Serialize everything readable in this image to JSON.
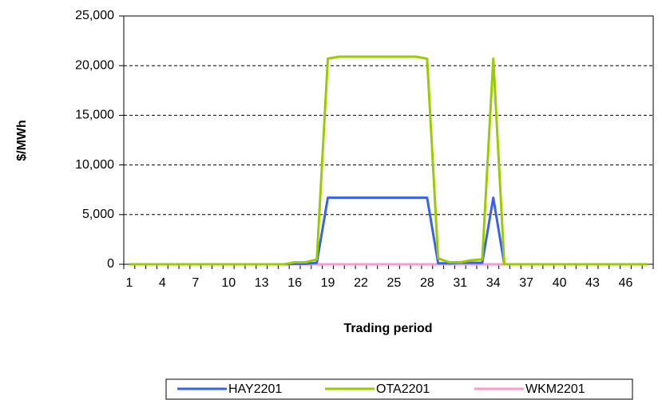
{
  "chart_data": {
    "type": "line",
    "xlabel": "Trading period",
    "ylabel": "$/MWh",
    "categories": [
      "1",
      null,
      null,
      "4",
      null,
      null,
      "7",
      null,
      null,
      "10",
      null,
      null,
      "13",
      null,
      null,
      "16",
      null,
      null,
      "19",
      null,
      null,
      "22",
      null,
      null,
      "25",
      null,
      null,
      "28",
      null,
      null,
      "31",
      null,
      null,
      "34",
      null,
      null,
      "37",
      null,
      null,
      "40",
      null,
      null,
      "43",
      null,
      null,
      "46",
      null,
      null
    ],
    "series": [
      {
        "name": "HAY2201",
        "color": "#3a62e8",
        "values": [
          0,
          0,
          0,
          0,
          0,
          0,
          0,
          0,
          0,
          0,
          0,
          0,
          0,
          0,
          0,
          50,
          50,
          150,
          6700,
          6700,
          6700,
          6700,
          6700,
          6700,
          6700,
          6700,
          6700,
          6700,
          100,
          100,
          150,
          150,
          150,
          6700,
          0,
          0,
          0,
          0,
          0,
          0,
          0,
          0,
          0,
          0,
          0,
          0,
          0,
          0
        ]
      },
      {
        "name": "OTA2201",
        "color": "#99cc00",
        "values": [
          0,
          0,
          0,
          0,
          0,
          0,
          0,
          0,
          0,
          0,
          0,
          0,
          0,
          0,
          0,
          200,
          200,
          500,
          20700,
          20900,
          20900,
          20900,
          20900,
          20900,
          20900,
          20900,
          20900,
          20700,
          600,
          200,
          200,
          400,
          500,
          20700,
          0,
          0,
          0,
          0,
          0,
          0,
          0,
          0,
          0,
          0,
          0,
          0,
          0,
          0
        ]
      },
      {
        "name": "WKM2201",
        "color": "#ff99cc",
        "values": [
          0,
          0,
          0,
          0,
          0,
          0,
          0,
          0,
          0,
          0,
          0,
          0,
          0,
          0,
          0,
          0,
          0,
          0,
          0,
          0,
          0,
          0,
          0,
          0,
          0,
          0,
          0,
          0,
          0,
          0,
          0,
          0,
          0,
          0,
          0,
          0,
          0,
          0,
          0,
          0,
          0,
          0,
          0,
          0,
          0,
          0,
          0,
          0
        ]
      }
    ],
    "ylim": [
      0,
      25000
    ],
    "yticks": [
      0,
      {
        "value": 5000,
        "label": "5,000"
      },
      {
        "value": 10000,
        "label": "10,000"
      },
      {
        "value": 15000,
        "label": "15,000"
      },
      {
        "value": 20000,
        "label": "20,000"
      },
      {
        "value": 25000,
        "label": "25,000"
      }
    ],
    "grid": true,
    "legend": "bottom"
  }
}
